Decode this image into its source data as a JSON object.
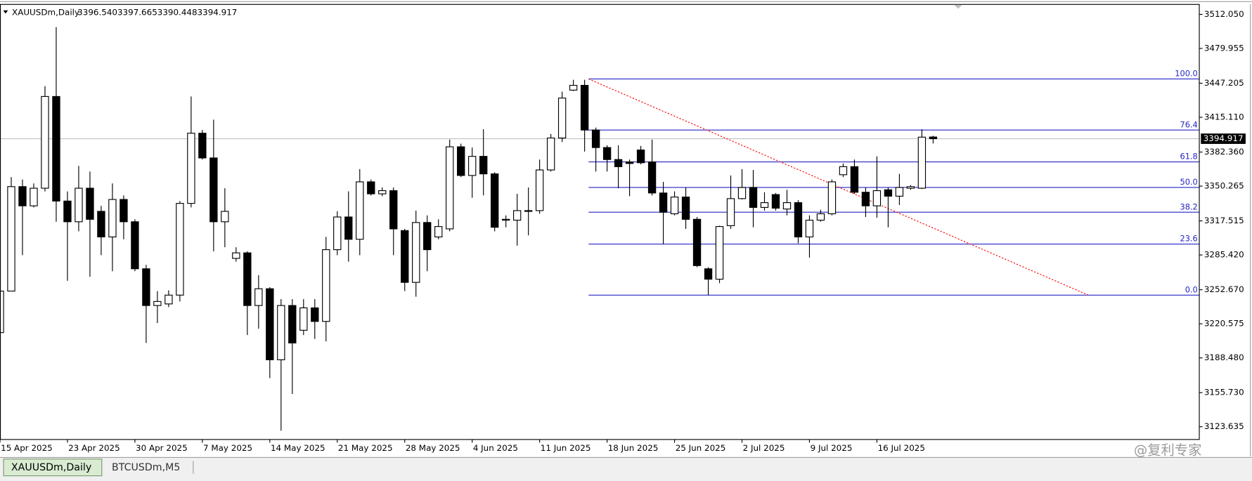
{
  "window": {
    "tabs": [
      "XAUUSDm,Daily",
      "BTCUSDm,M5"
    ],
    "watermark": "@复利专家"
  },
  "chart_data": {
    "type": "candlestick",
    "title": "XAUUSDm,Daily",
    "last_labels": [
      "3396.540",
      "3397.665",
      "3390.448",
      "3394.917"
    ],
    "categories": [
      "15 Apr 2025",
      null,
      null,
      null,
      null,
      null,
      "23 Apr 2025",
      null,
      null,
      null,
      null,
      null,
      "30 Apr 2025",
      null,
      null,
      null,
      null,
      null,
      "7 May 2025",
      null,
      null,
      null,
      null,
      null,
      "14 May 2025",
      null,
      null,
      null,
      null,
      null,
      "21 May 2025",
      null,
      null,
      null,
      null,
      null,
      "28 May 2025",
      null,
      null,
      null,
      null,
      null,
      "4 Jun 2025",
      null,
      null,
      null,
      null,
      null,
      "11 Jun 2025",
      null,
      null,
      null,
      null,
      null,
      "18 Jun 2025",
      null,
      null,
      null,
      null,
      null,
      "25 Jun 2025",
      null,
      null,
      null,
      null,
      null,
      "2 Jul 2025",
      null,
      null,
      null,
      null,
      null,
      "9 Jul 2025",
      null,
      null,
      null,
      null,
      null,
      "16 Jul 2025",
      null,
      null,
      null,
      null,
      null
    ],
    "open": [
      3212.3,
      3251.4,
      3349.8,
      3331.7,
      3348.3,
      3434.7,
      3336.2,
      3316.7,
      3348.3,
      3326.5,
      3302.4,
      3337.7,
      3316.7,
      3272.4,
      3237.8,
      3239.3,
      3247.6,
      3334.0,
      3400.1,
      3376.8,
      3316.7,
      3282.2,
      3287.4,
      3237.8,
      3253.6,
      3186.7,
      3237.8,
      3214.5,
      3235.6,
      3222.8,
      3290.4,
      3321.2,
      3300.2,
      3354.3,
      3343.0,
      3346.0,
      3308.4,
      3259.6,
      3316.0,
      3302.4,
      3310.0,
      3387.3,
      3360.3,
      3378.3,
      3361.8,
      3318.2,
      3318.2,
      3326.5,
      3327.2,
      3365.5,
      3395.6,
      3440.7,
      3445.2,
      3403.1,
      3386.6,
      3375.3,
      3373.1,
      3384.3,
      3373.1,
      3343.8,
      3324.2,
      3340.0,
      3319.0,
      3272.4,
      3262.6,
      3313.0,
      3338.5,
      3349.0,
      3330.2,
      3342.3,
      3328.7,
      3334.7,
      3302.4,
      3318.2,
      3324.2,
      3361.0,
      3368.6,
      3344.5,
      3331.7,
      3346.8,
      3340.8,
      3348.3,
      3348.3,
      3396.54
    ],
    "high": [
      3251.4,
      3358.8,
      3356.5,
      3352.8,
      3444.4,
      3500.0,
      3345.3,
      3369.3,
      3364.0,
      3331.7,
      3352.8,
      3341.5,
      3319.0,
      3276.1,
      3251.4,
      3252.1,
      3336.2,
      3434.7,
      3403.1,
      3412.9,
      3348.3,
      3292.7,
      3288.9,
      3266.4,
      3255.1,
      3243.8,
      3243.8,
      3243.8,
      3243.8,
      3302.4,
      3326.5,
      3345.3,
      3366.3,
      3356.5,
      3349.0,
      3349.0,
      3310.0,
      3327.2,
      3322.7,
      3319.0,
      3394.1,
      3390.3,
      3386.6,
      3403.9,
      3363.3,
      3322.7,
      3343.0,
      3349.0,
      3375.3,
      3399.4,
      3439.2,
      3450.4,
      3450.4,
      3405.4,
      3388.8,
      3388.8,
      3375.3,
      3388.1,
      3394.1,
      3354.3,
      3345.3,
      3349.0,
      3321.2,
      3273.9,
      3313.0,
      3360.3,
      3366.3,
      3365.5,
      3344.5,
      3343.8,
      3346.8,
      3337.0,
      3322.7,
      3328.0,
      3356.5,
      3371.6,
      3375.3,
      3349.0,
      3378.3,
      3349.0,
      3361.8,
      3351.3,
      3403.9,
      3397.665
    ],
    "low": [
      3210.0,
      3251.4,
      3285.2,
      3330.2,
      3345.3,
      3316.7,
      3261.1,
      3307.7,
      3264.9,
      3285.2,
      3270.1,
      3300.2,
      3270.1,
      3202.5,
      3221.3,
      3236.3,
      3241.6,
      3330.2,
      3375.3,
      3288.9,
      3292.7,
      3279.1,
      3210.0,
      3216.0,
      3169.5,
      3119.9,
      3154.4,
      3210.0,
      3206.3,
      3204.0,
      3285.2,
      3279.1,
      3285.2,
      3341.5,
      3340.8,
      3285.2,
      3251.4,
      3246.1,
      3270.1,
      3300.2,
      3307.7,
      3358.8,
      3339.3,
      3341.5,
      3307.7,
      3311.5,
      3294.2,
      3303.9,
      3324.2,
      3364.0,
      3391.8,
      3439.9,
      3382.8,
      3364.0,
      3364.0,
      3348.3,
      3340.8,
      3370.8,
      3341.5,
      3295.7,
      3322.7,
      3310.0,
      3273.9,
      3247.6,
      3258.9,
      3310.0,
      3337.7,
      3311.5,
      3327.2,
      3327.2,
      3322.7,
      3296.4,
      3282.9,
      3316.7,
      3322.7,
      3358.8,
      3343.0,
      3321.2,
      3320.5,
      3311.5,
      3332.5,
      3346.8,
      3347.5,
      3390.448
    ],
    "close": [
      3251.4,
      3349.8,
      3331.7,
      3348.3,
      3434.7,
      3336.2,
      3316.7,
      3348.3,
      3319.0,
      3302.4,
      3337.7,
      3316.7,
      3272.4,
      3237.8,
      3241.6,
      3247.6,
      3334.0,
      3400.1,
      3376.8,
      3316.7,
      3326.5,
      3287.4,
      3237.8,
      3253.6,
      3186.7,
      3237.8,
      3202.5,
      3235.6,
      3222.8,
      3290.4,
      3321.2,
      3300.2,
      3354.3,
      3343.0,
      3346.0,
      3310.0,
      3259.6,
      3316.0,
      3290.4,
      3312.2,
      3387.3,
      3360.3,
      3378.3,
      3361.8,
      3311.5,
      3319.0,
      3327.2,
      3327.2,
      3365.5,
      3395.6,
      3433.2,
      3445.2,
      3403.1,
      3386.6,
      3375.3,
      3368.6,
      3371.6,
      3372.3,
      3343.8,
      3325.7,
      3340.0,
      3319.0,
      3275.4,
      3262.6,
      3312.2,
      3338.5,
      3349.0,
      3330.2,
      3334.7,
      3329.5,
      3334.7,
      3302.4,
      3318.2,
      3324.2,
      3354.3,
      3368.6,
      3344.5,
      3331.7,
      3346.0,
      3340.8,
      3349.0,
      3349.8,
      3396.4,
      3394.917
    ],
    "up_color": "#ffffff",
    "down_color": "#000000",
    "ylim": [
      3111.6,
      3521.8
    ],
    "yticks": [
      {
        "value": 3512.05,
        "label": "3512.050"
      },
      {
        "value": 3479.955,
        "label": "3479.955"
      },
      {
        "value": 3447.205,
        "label": "3447.205"
      },
      {
        "value": 3415.11,
        "label": "3415.110"
      },
      {
        "value": 3382.36,
        "label": "3382.360"
      },
      {
        "value": 3350.265,
        "label": "3350.265"
      },
      {
        "value": 3317.515,
        "label": "3317.515"
      },
      {
        "value": 3285.42,
        "label": "3285.420"
      },
      {
        "value": 3252.67,
        "label": "3252.670"
      },
      {
        "value": 3220.575,
        "label": "3220.575"
      },
      {
        "value": 3188.48,
        "label": "3188.480"
      },
      {
        "value": 3155.73,
        "label": "3155.730"
      },
      {
        "value": 3123.635,
        "label": "3123.635"
      }
    ],
    "fib_levels": [
      {
        "label": "100.0",
        "price": 3451.2
      },
      {
        "label": "76.4",
        "price": 3403.1
      },
      {
        "label": "61.8",
        "price": 3373.1
      },
      {
        "label": "50.0",
        "price": 3349.0
      },
      {
        "label": "38.2",
        "price": 3325.7
      },
      {
        "label": "23.6",
        "price": 3295.7
      },
      {
        "label": "0.0",
        "price": 3247.6
      }
    ],
    "fib_color": "#2424c4",
    "trend_color": "#ff0000",
    "grid": false
  }
}
